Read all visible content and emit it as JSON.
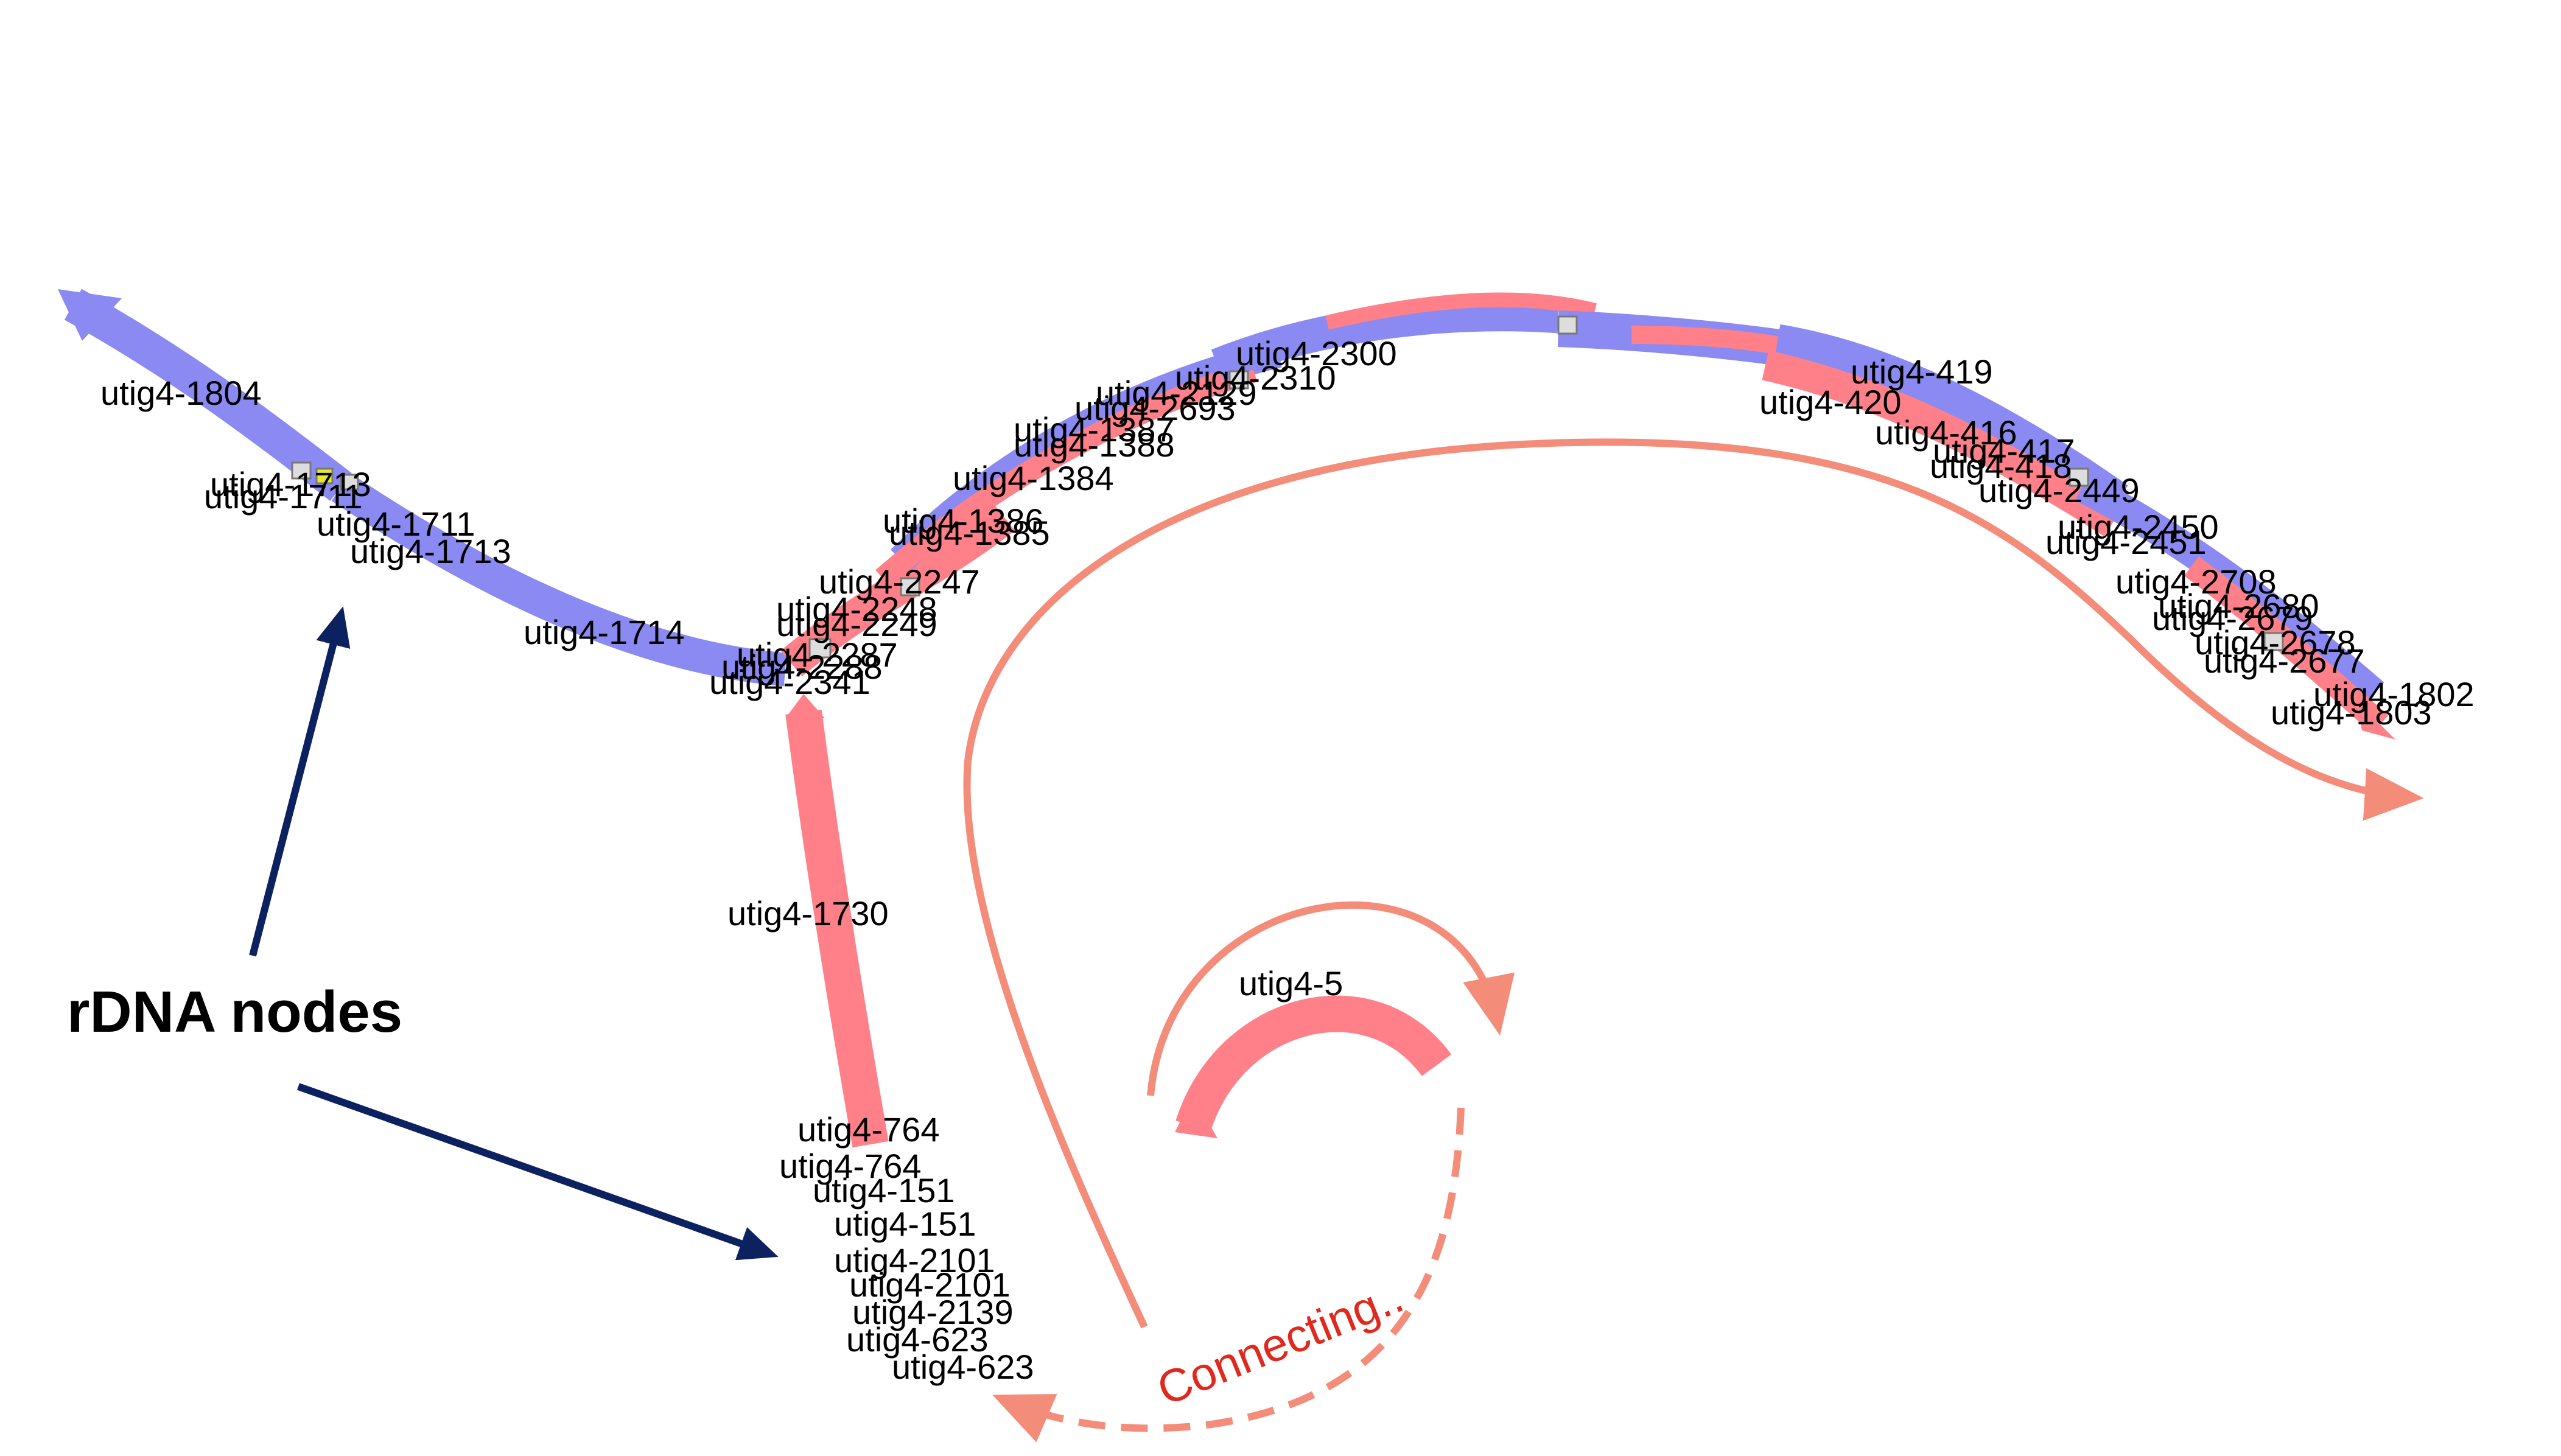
{
  "colors": {
    "blue_strand": "#8a8af2",
    "red_strand": "#ff8088",
    "salmon_arrow": "#f48c7a",
    "navy_arrow": "#0b2160",
    "connecting_text": "#e0281c",
    "yellow_node": "#e8e82a"
  },
  "callout": {
    "label": "rDNA nodes"
  },
  "connecting": {
    "label": "Connecting.."
  },
  "labels": {
    "utig4_1804": "utig4-1804",
    "utig4_1713": "utig4-1713",
    "utig4_1711": "utig4-1711",
    "utig4_1714": "utig4-1714",
    "utig4_2341": "utig4-2341",
    "utig4_2288": "utig4-2288",
    "utig4_2287": "utig4-2287",
    "utig4_2249": "utig4-2249",
    "utig4_2248": "utig4-2248",
    "utig4_2247": "utig4-2247",
    "utig4_1386": "utig4-1386",
    "utig4_1385": "utig4-1385",
    "utig4_1384": "utig4-1384",
    "utig4_1388": "utig4-1388",
    "utig4_1387": "utig4-1387",
    "utig4_2693": "utig4-2693",
    "utig4_2129": "utig4-2129",
    "utig4_2310": "utig4-2310",
    "utig4_2300": "utig4-2300",
    "utig4_419": "utig4-419",
    "utig4_420": "utig4-420",
    "utig4_416": "utig4-416",
    "utig4_417": "utig4-417",
    "utig4_418": "utig4-418",
    "utig4_2449": "utig4-2449",
    "utig4_2450": "utig4-2450",
    "utig4_2451": "utig4-2451",
    "utig4_2708": "utig4-2708",
    "utig4_2680": "utig4-2680",
    "utig4_2679": "utig4-2679",
    "utig4_2678": "utig4-2678",
    "utig4_2677": "utig4-2677",
    "utig4_1802": "utig4-1802",
    "utig4_1803": "utig4-1803",
    "utig4_1730": "utig4-1730",
    "utig4_5": "utig4-5",
    "utig4_764": "utig4-764",
    "utig4_151": "utig4-151",
    "utig4_2101": "utig4-2101",
    "utig4_2139": "utig4-2139",
    "utig4_623": "utig4-623"
  }
}
